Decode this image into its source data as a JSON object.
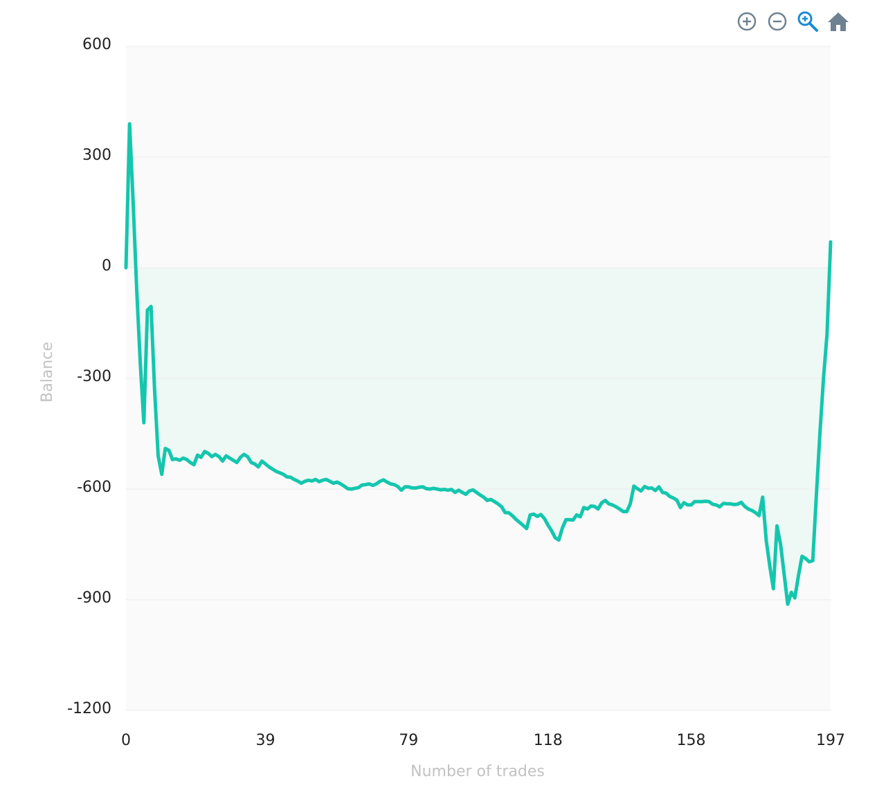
{
  "toolbar": {
    "icons": [
      "zoom-in-icon",
      "zoom-out-icon",
      "zoom-select-icon",
      "home-icon"
    ],
    "active_color": "#1a8ad6",
    "icon_color": "#6e8192"
  },
  "chart_data": {
    "type": "area",
    "xlabel": "Number of trades",
    "ylabel": "Balance",
    "xlim": [
      0,
      197
    ],
    "ylim": [
      -1200,
      600
    ],
    "x_ticks": [
      0,
      39,
      79,
      118,
      158,
      197
    ],
    "y_ticks": [
      600,
      300,
      0,
      -300,
      -600,
      -900,
      -1200
    ],
    "grid": true,
    "line_color": "#14c6ad",
    "fill_color": "#eef8f5",
    "plot_background": "#fafafa",
    "series": [
      {
        "x": [
          0,
          1,
          2,
          3,
          4,
          5,
          6,
          7,
          8,
          9,
          10,
          11,
          12,
          13,
          14,
          15,
          16,
          17,
          18,
          19,
          20,
          21,
          22,
          23,
          24,
          25,
          26,
          27,
          28,
          29,
          30,
          31,
          32,
          33,
          34,
          35,
          36,
          37,
          38,
          39,
          40,
          41,
          42,
          43,
          44,
          45,
          46,
          47,
          48,
          49,
          50,
          51,
          52,
          53,
          54,
          55,
          56,
          57,
          58,
          59,
          60,
          61,
          62,
          63,
          64,
          65,
          66,
          67,
          68,
          69,
          70,
          71,
          72,
          73,
          74,
          75,
          76,
          77,
          78,
          79,
          80,
          81,
          82,
          83,
          84,
          85,
          86,
          87,
          88,
          89,
          90,
          91,
          92,
          93,
          94,
          95,
          96,
          97,
          98,
          99,
          100,
          101,
          102,
          103,
          104,
          105,
          106,
          107,
          108,
          109,
          110,
          111,
          112,
          113,
          114,
          115,
          116,
          117,
          118,
          119,
          120,
          121,
          122,
          123,
          124,
          125,
          126,
          127,
          128,
          129,
          130,
          131,
          132,
          133,
          134,
          135,
          136,
          137,
          138,
          139,
          140,
          141,
          142,
          143,
          144,
          145,
          146,
          147,
          148,
          149,
          150,
          151,
          152,
          153,
          154,
          155,
          156,
          157,
          158,
          159,
          160,
          161,
          162,
          163,
          164,
          165,
          166,
          167,
          168,
          169,
          170,
          171,
          172,
          173,
          174,
          175,
          176,
          177,
          178,
          179,
          180,
          181,
          182,
          183,
          184,
          185,
          186,
          187,
          188,
          189,
          190,
          191,
          192,
          193,
          194,
          195,
          196,
          197
        ],
        "values": [
          0,
          390,
          180,
          -60,
          -260,
          -420,
          -115,
          -105,
          -330,
          -510,
          -560,
          -490,
          -495,
          -520,
          -518,
          -522,
          -516,
          -520,
          -528,
          -534,
          -508,
          -514,
          -498,
          -503,
          -512,
          -506,
          -512,
          -524,
          -510,
          -516,
          -522,
          -528,
          -514,
          -506,
          -512,
          -528,
          -532,
          -540,
          -524,
          -532,
          -540,
          -546,
          -552,
          -556,
          -560,
          -567,
          -568,
          -574,
          -578,
          -584,
          -579,
          -576,
          -578,
          -574,
          -580,
          -576,
          -574,
          -579,
          -584,
          -581,
          -586,
          -592,
          -599,
          -600,
          -598,
          -596,
          -589,
          -588,
          -586,
          -590,
          -586,
          -579,
          -575,
          -581,
          -586,
          -588,
          -593,
          -603,
          -594,
          -594,
          -597,
          -597,
          -595,
          -594,
          -599,
          -600,
          -598,
          -600,
          -602,
          -601,
          -603,
          -601,
          -609,
          -603,
          -609,
          -614,
          -605,
          -602,
          -609,
          -616,
          -622,
          -631,
          -628,
          -634,
          -640,
          -648,
          -664,
          -664,
          -672,
          -682,
          -690,
          -698,
          -707,
          -670,
          -668,
          -674,
          -669,
          -680,
          -698,
          -713,
          -732,
          -738,
          -706,
          -683,
          -683,
          -684,
          -670,
          -675,
          -650,
          -654,
          -646,
          -647,
          -654,
          -637,
          -631,
          -640,
          -643,
          -648,
          -654,
          -661,
          -661,
          -640,
          -592,
          -599,
          -605,
          -593,
          -598,
          -597,
          -604,
          -594,
          -609,
          -611,
          -620,
          -624,
          -630,
          -650,
          -637,
          -643,
          -643,
          -634,
          -634,
          -634,
          -633,
          -634,
          -641,
          -643,
          -648,
          -639,
          -640,
          -640,
          -642,
          -641,
          -636,
          -647,
          -654,
          -658,
          -664,
          -672,
          -622,
          -740,
          -810,
          -870,
          -700,
          -750,
          -830,
          -912,
          -880,
          -895,
          -835,
          -782,
          -788,
          -797,
          -794,
          -620,
          -450,
          -300,
          -180,
          70
        ]
      }
    ]
  }
}
